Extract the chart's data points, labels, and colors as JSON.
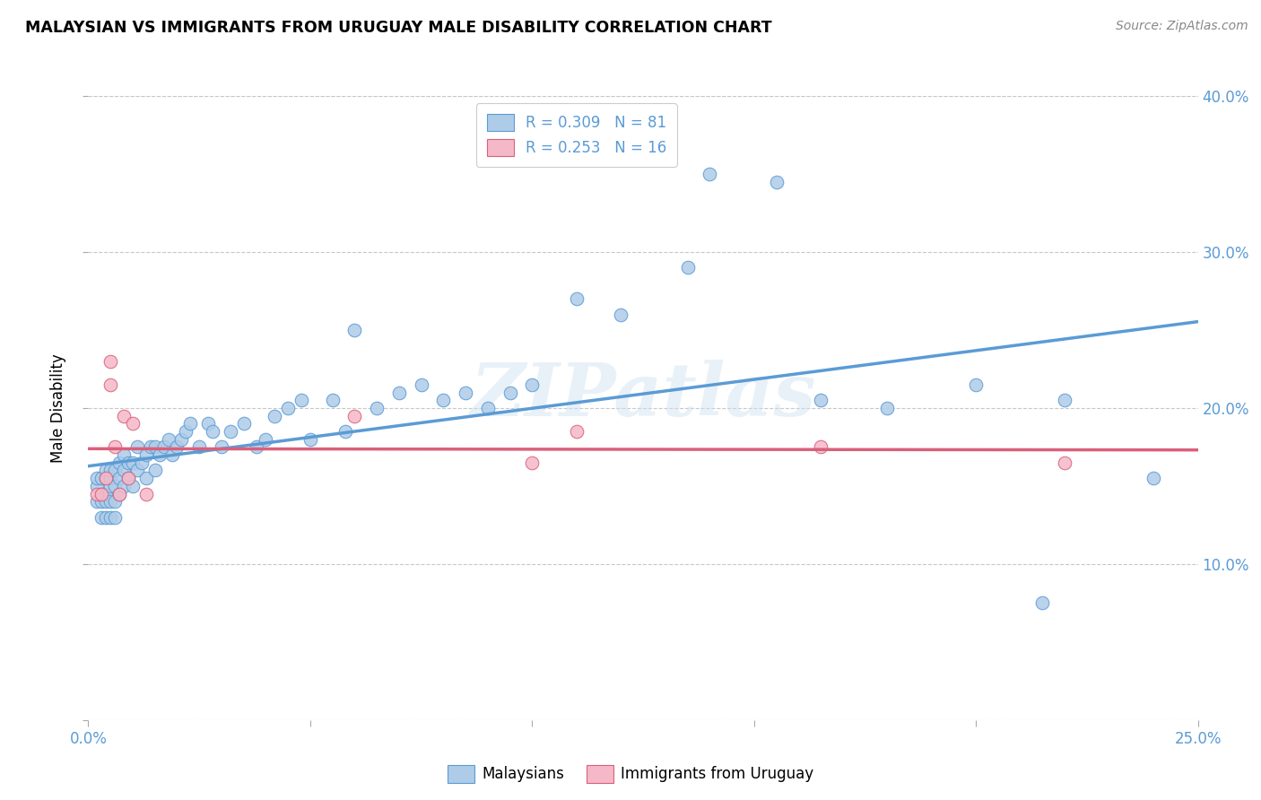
{
  "title": "MALAYSIAN VS IMMIGRANTS FROM URUGUAY MALE DISABILITY CORRELATION CHART",
  "source": "Source: ZipAtlas.com",
  "ylabel": "Male Disability",
  "x_min": 0.0,
  "x_max": 0.25,
  "y_min": 0.0,
  "y_max": 0.4,
  "x_ticks": [
    0.0,
    0.05,
    0.1,
    0.15,
    0.2,
    0.25
  ],
  "x_tick_labels": [
    "0.0%",
    "",
    "",
    "",
    "",
    "25.0%"
  ],
  "y_ticks": [
    0.0,
    0.1,
    0.2,
    0.3,
    0.4
  ],
  "y_tick_labels_right": [
    "",
    "10.0%",
    "20.0%",
    "30.0%",
    "40.0%"
  ],
  "malaysian_color": "#aecce8",
  "uruguayan_color": "#f5b8c8",
  "line_malaysian_color": "#5b9bd5",
  "line_uruguayan_color": "#d9607a",
  "legend_R_malaysian": "R = 0.309",
  "legend_N_malaysian": "N = 81",
  "legend_R_uruguayan": "R = 0.253",
  "legend_N_uruguayan": "N = 16",
  "malaysian_x": [
    0.002,
    0.002,
    0.002,
    0.003,
    0.003,
    0.003,
    0.003,
    0.004,
    0.004,
    0.004,
    0.004,
    0.004,
    0.005,
    0.005,
    0.005,
    0.005,
    0.005,
    0.006,
    0.006,
    0.006,
    0.006,
    0.007,
    0.007,
    0.007,
    0.008,
    0.008,
    0.008,
    0.009,
    0.009,
    0.01,
    0.01,
    0.011,
    0.011,
    0.012,
    0.013,
    0.013,
    0.014,
    0.015,
    0.015,
    0.016,
    0.017,
    0.018,
    0.019,
    0.02,
    0.021,
    0.022,
    0.023,
    0.025,
    0.027,
    0.028,
    0.03,
    0.032,
    0.035,
    0.038,
    0.04,
    0.042,
    0.045,
    0.048,
    0.05,
    0.055,
    0.058,
    0.06,
    0.065,
    0.07,
    0.075,
    0.08,
    0.085,
    0.09,
    0.095,
    0.1,
    0.11,
    0.12,
    0.135,
    0.14,
    0.155,
    0.165,
    0.18,
    0.2,
    0.215,
    0.22,
    0.24
  ],
  "malaysian_y": [
    0.14,
    0.15,
    0.155,
    0.13,
    0.14,
    0.145,
    0.155,
    0.13,
    0.14,
    0.145,
    0.155,
    0.16,
    0.13,
    0.14,
    0.15,
    0.155,
    0.16,
    0.13,
    0.14,
    0.15,
    0.16,
    0.145,
    0.155,
    0.165,
    0.15,
    0.16,
    0.17,
    0.155,
    0.165,
    0.15,
    0.165,
    0.16,
    0.175,
    0.165,
    0.155,
    0.17,
    0.175,
    0.16,
    0.175,
    0.17,
    0.175,
    0.18,
    0.17,
    0.175,
    0.18,
    0.185,
    0.19,
    0.175,
    0.19,
    0.185,
    0.175,
    0.185,
    0.19,
    0.175,
    0.18,
    0.195,
    0.2,
    0.205,
    0.18,
    0.205,
    0.185,
    0.25,
    0.2,
    0.21,
    0.215,
    0.205,
    0.21,
    0.2,
    0.21,
    0.215,
    0.27,
    0.26,
    0.29,
    0.35,
    0.345,
    0.205,
    0.2,
    0.215,
    0.075,
    0.205,
    0.155
  ],
  "uruguayan_x": [
    0.002,
    0.003,
    0.004,
    0.005,
    0.005,
    0.006,
    0.007,
    0.008,
    0.009,
    0.01,
    0.013,
    0.06,
    0.1,
    0.11,
    0.165,
    0.22
  ],
  "uruguayan_y": [
    0.145,
    0.145,
    0.155,
    0.215,
    0.23,
    0.175,
    0.145,
    0.195,
    0.155,
    0.19,
    0.145,
    0.195,
    0.165,
    0.185,
    0.175,
    0.165
  ],
  "watermark": "ZIPatlas",
  "background_color": "#ffffff",
  "grid_color": "#c8c8c8"
}
